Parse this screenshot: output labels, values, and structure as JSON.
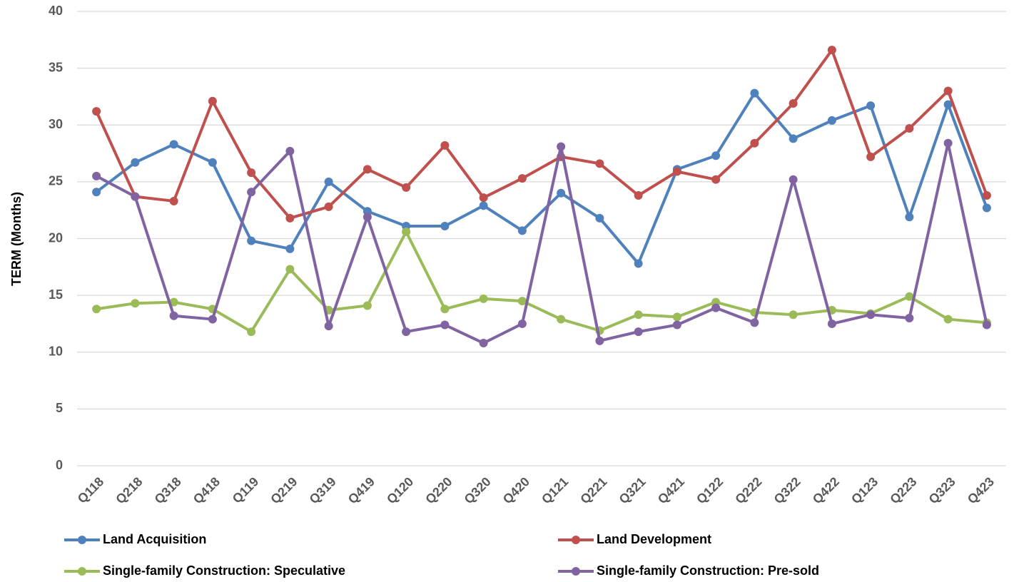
{
  "chart_data": {
    "type": "line",
    "y_label": "TERM (Months)",
    "categories": [
      "Q118",
      "Q218",
      "Q318",
      "Q418",
      "Q119",
      "Q219",
      "Q319",
      "Q419",
      "Q120",
      "Q220",
      "Q320",
      "Q420",
      "Q121",
      "Q221",
      "Q321",
      "Q421",
      "Q122",
      "Q222",
      "Q322",
      "Q422",
      "Q123",
      "Q223",
      "Q323",
      "Q423"
    ],
    "series": [
      {
        "name": "Land Acquisition",
        "color": "#4f81bd",
        "values": [
          24.1,
          26.7,
          28.3,
          26.7,
          19.8,
          19.1,
          25.0,
          22.4,
          21.1,
          21.1,
          22.9,
          20.7,
          24.0,
          21.8,
          17.8,
          26.1,
          27.3,
          32.8,
          28.8,
          30.4,
          31.7,
          21.9,
          31.8,
          22.7
        ]
      },
      {
        "name": "Land Development",
        "color": "#c0504d",
        "values": [
          31.2,
          23.7,
          23.3,
          32.1,
          25.8,
          21.8,
          22.8,
          26.1,
          24.5,
          28.2,
          23.6,
          25.3,
          27.2,
          26.6,
          23.8,
          25.9,
          25.2,
          28.4,
          31.9,
          36.6,
          27.2,
          29.7,
          33.0,
          23.8
        ]
      },
      {
        "name": "Single-family Construction: Speculative",
        "color": "#9bbb59",
        "values": [
          13.8,
          14.3,
          14.4,
          13.8,
          11.8,
          17.3,
          13.7,
          14.1,
          20.6,
          13.8,
          14.7,
          14.5,
          12.9,
          11.9,
          13.3,
          13.1,
          14.4,
          13.5,
          13.3,
          13.7,
          13.4,
          14.9,
          12.9,
          12.6
        ]
      },
      {
        "name": "Single-family Construction: Pre-sold",
        "color": "#8064a2",
        "values": [
          25.5,
          23.7,
          13.2,
          12.9,
          24.1,
          27.7,
          12.3,
          21.9,
          11.8,
          12.4,
          10.8,
          12.5,
          28.1,
          11.0,
          11.8,
          12.4,
          13.9,
          12.6,
          25.2,
          12.5,
          13.3,
          13.0,
          28.4,
          12.4
        ]
      }
    ],
    "ylim": [
      0,
      40
    ],
    "yticks": [
      0,
      5,
      10,
      15,
      20,
      25,
      30,
      35,
      40
    ],
    "grid": true,
    "legend": "bottom"
  }
}
